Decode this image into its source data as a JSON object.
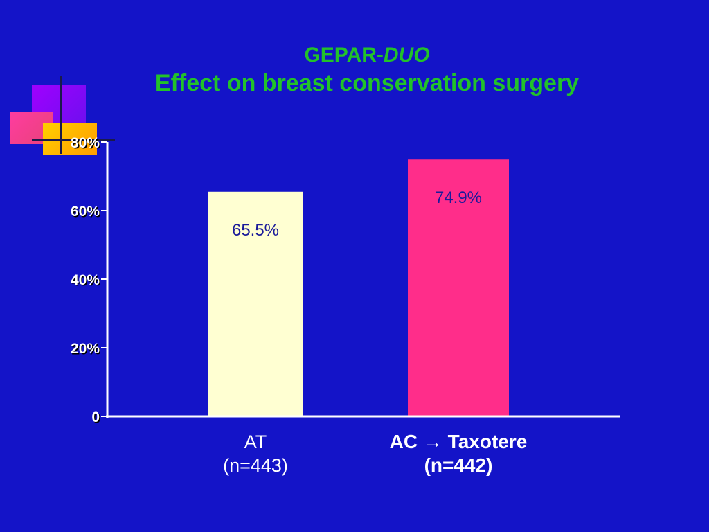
{
  "title": {
    "prefix": "GEPAR-",
    "italic": "DUO",
    "subtitle": "Effect on breast conservation surgery"
  },
  "colors": {
    "background": "#1414c8",
    "title": "#22c22a",
    "axis": "#ffffff",
    "data_label": "#1a1a9a"
  },
  "chart_data": {
    "type": "bar",
    "title": "GEPAR-DUO Effect on breast conservation surgery",
    "categories": [
      "AT (n=443)",
      "AC → Taxotere (n=442)"
    ],
    "category_lines": [
      [
        "AT",
        "(n=443)"
      ],
      [
        "AC → Taxotere",
        "(n=442)"
      ]
    ],
    "values": [
      65.5,
      74.9
    ],
    "data_labels": [
      "65.5%",
      "74.9%"
    ],
    "bar_colors": [
      "#ffffd2",
      "#ff2d8a"
    ],
    "ylim": [
      0,
      80
    ],
    "yticks": [
      0,
      20,
      40,
      60,
      80
    ],
    "ytick_labels": [
      "0",
      "20%",
      "40%",
      "60%",
      "80%"
    ],
    "xlabel": "",
    "ylabel": "",
    "grid": false,
    "legend": "none"
  }
}
